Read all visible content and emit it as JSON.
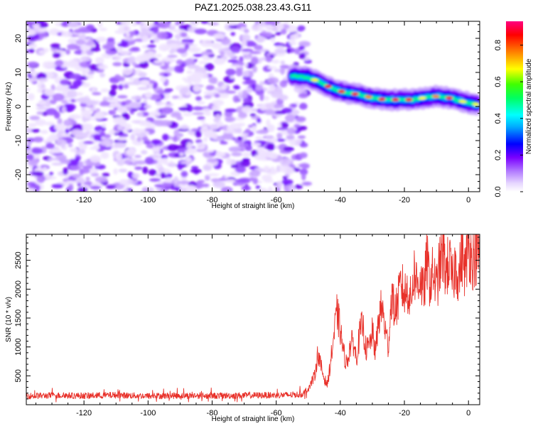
{
  "title": "PAZ1.2025.038.23.43.G11",
  "chart_data": [
    {
      "type": "heatmap",
      "xlabel": "Height of straight line (km)",
      "ylabel": "Frequency (Hz)",
      "xlim": [
        -138,
        3.5
      ],
      "ylim": [
        -25,
        25
      ],
      "xticks": [
        -120,
        -100,
        -80,
        -60,
        -40,
        -20,
        0
      ],
      "yticks": [
        -20,
        -10,
        0,
        10,
        20
      ],
      "colorbar": {
        "label": "Normalized spectral amplitude",
        "range": [
          0,
          0.93
        ],
        "ticks": [
          "0.0",
          "0.2",
          "0.4",
          "0.6",
          "0.8"
        ],
        "colormap": [
          "#ffffff",
          "#c8a0ff",
          "#7a00ff",
          "#0000ff",
          "#00ffff",
          "#00ff00",
          "#ffff00",
          "#ff8000",
          "#ff0000",
          "#ff0080"
        ]
      },
      "noise_region_x": [
        -138,
        -50
      ],
      "signal_track": {
        "x": [
          -55,
          -50,
          -46,
          -42,
          -38,
          -34,
          -30,
          -26,
          -22,
          -18,
          -14,
          -10,
          -6,
          -2,
          3
        ],
        "frequency": [
          9,
          8.5,
          7,
          5,
          4,
          3.5,
          2.5,
          2,
          2,
          2,
          2.5,
          3,
          2.5,
          1.5,
          0.5
        ]
      }
    },
    {
      "type": "line",
      "xlabel": "Height of straight line (km)",
      "ylabel": "SNR (10 * v/v)",
      "xlim": [
        -138,
        3.5
      ],
      "ylim": [
        0,
        2950
      ],
      "xticks": [
        -120,
        -100,
        -80,
        -60,
        -40,
        -20,
        0
      ],
      "yticks": [
        500,
        1000,
        1500,
        2000,
        2500
      ],
      "series": [
        {
          "color": "#e8312a",
          "x": [
            -138,
            -130,
            -120,
            -110,
            -100,
            -90,
            -80,
            -70,
            -60,
            -55,
            -52,
            -50,
            -48,
            -47,
            -46,
            -45,
            -44,
            -43,
            -42,
            -41,
            -40,
            -39,
            -38,
            -37,
            -36,
            -35,
            -34,
            -33,
            -32,
            -31,
            -30,
            -29,
            -28,
            -27,
            -26,
            -25,
            -24,
            -23,
            -22,
            -21,
            -20,
            -19,
            -18,
            -17,
            -16,
            -15,
            -14,
            -13,
            -12,
            -11,
            -10,
            -9,
            -8,
            -7,
            -6,
            -5,
            -4,
            -3,
            -2,
            -1,
            0,
            1,
            2,
            3.5
          ],
          "y": [
            150,
            160,
            155,
            165,
            150,
            158,
            155,
            160,
            165,
            170,
            180,
            280,
            500,
            900,
            650,
            450,
            350,
            750,
            1200,
            1600,
            1300,
            900,
            700,
            1000,
            1100,
            800,
            1200,
            1400,
            950,
            1000,
            1250,
            900,
            1500,
            1700,
            1300,
            1000,
            1900,
            1600,
            1800,
            2100,
            1900,
            2000,
            1800,
            2300,
            2100,
            2200,
            1900,
            2500,
            2100,
            2300,
            2000,
            2400,
            2600,
            2300,
            2500,
            2100,
            2450,
            2200,
            2600,
            2300,
            2800,
            2500,
            2600,
            2600
          ]
        }
      ]
    }
  ]
}
